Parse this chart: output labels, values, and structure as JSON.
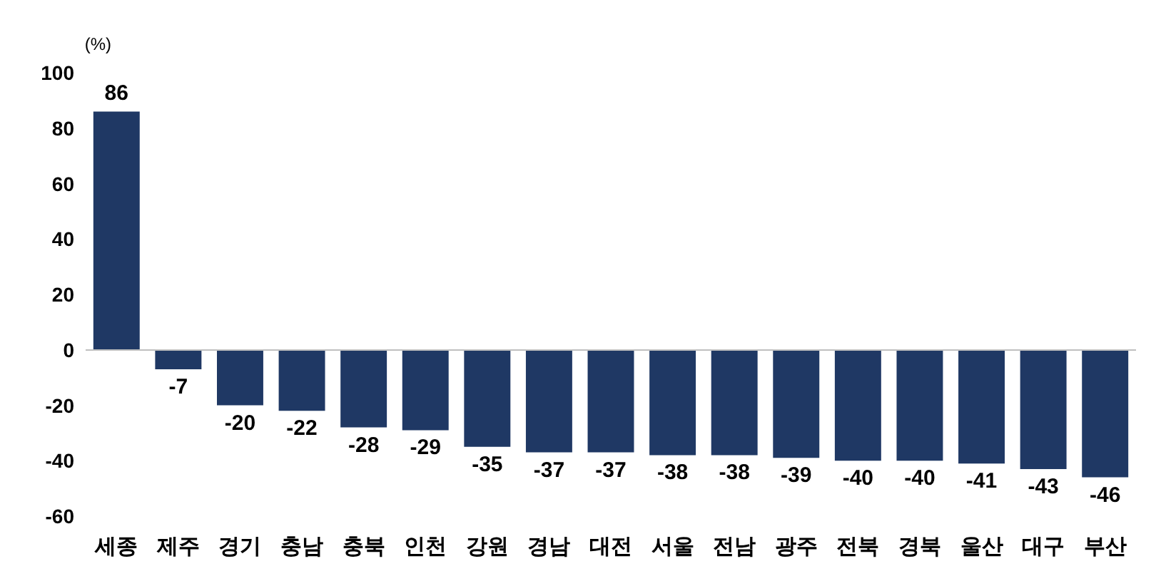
{
  "chart_data": {
    "type": "bar",
    "ylabel": "(%)",
    "categories": [
      "세종",
      "제주",
      "경기",
      "충남",
      "충북",
      "인천",
      "강원",
      "경남",
      "대전",
      "서울",
      "전남",
      "광주",
      "전북",
      "경북",
      "울산",
      "대구",
      "부산"
    ],
    "values": [
      86,
      -7,
      -20,
      -22,
      -28,
      -29,
      -35,
      -37,
      -37,
      -38,
      -38,
      -39,
      -40,
      -40,
      -41,
      -43,
      -46
    ],
    "color": "#1f3864",
    "ylim": [
      -60,
      100
    ],
    "yticks": [
      -60,
      -40,
      -20,
      0,
      20,
      40,
      60,
      80,
      100
    ],
    "grid": false,
    "data_labels": true,
    "ref_lines": [
      {
        "axis": "y",
        "value": 0,
        "color": "#bfbfbf"
      }
    ]
  }
}
